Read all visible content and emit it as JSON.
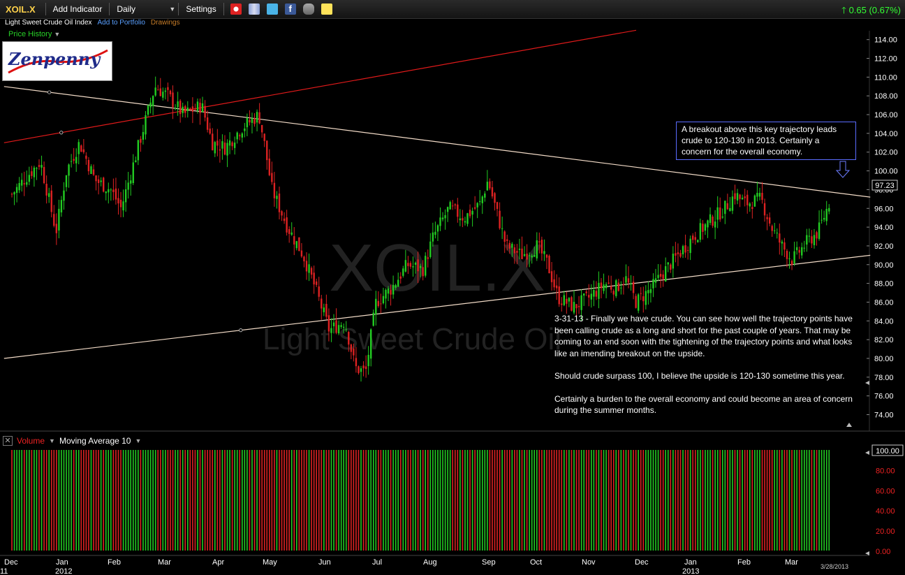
{
  "toolbar": {
    "symbol": "XOIL.X",
    "add_indicator": "Add Indicator",
    "period": "Daily",
    "settings": "Settings",
    "change": "0.65 (0.67%)"
  },
  "subheader": {
    "name": "Light Sweet Crude Oil Index",
    "add_portfolio": "Add to Portfolio",
    "drawings": "Drawings"
  },
  "price_history_label": "Price History",
  "logo_text": "Zenpenny",
  "watermark": {
    "symbol": "XOIL.X",
    "name": "Light Sweet Crude Oil"
  },
  "annotation_box": "A breakout above this key trajectory leads crude to 120-130 in 2013. Certainly a concern for the overall economy.",
  "annotation_text": [
    "3-31-13 - Finally we have crude. You can see how well the trajectory points have been calling crude as a long and short for the past couple of years. That may be coming to an end soon with the tightening of the trajectory points and what looks like an imending breakout on the upside.",
    "Should crude surpass 100, I believe the upside is 120-130 sometime this year.",
    "Certainly a burden to the overall economy and could become an area of concern during the summer months."
  ],
  "volume_panel": {
    "volume_label": "Volume",
    "ma_label": "Moving Average 10",
    "y_ticks": [
      "100.00",
      "80.00",
      "60.00",
      "40.00",
      "20.00",
      "0.00"
    ]
  },
  "colors": {
    "up": "#22cc22",
    "down": "#dd2222",
    "trend_red": "#e01a1a",
    "trend_light": "#f3dcc8",
    "accent_blue": "#5a6cff"
  },
  "chart_data": {
    "type": "candlestick",
    "x_labels": [
      "Dec",
      "Jan",
      "Feb",
      "Mar",
      "Apr",
      "May",
      "Jun",
      "Jul",
      "Aug",
      "Sep",
      "Oct",
      "Nov",
      "Dec",
      "Jan",
      "Feb",
      "Mar"
    ],
    "x_sub_labels": [
      {
        "at": "Dec",
        "text": "11"
      },
      {
        "at": "Jan",
        "text": "2012"
      },
      {
        "at": "Jan",
        "text": "2013"
      }
    ],
    "date_stamp": "3/28/2013",
    "y_ticks": [
      74,
      76,
      78,
      80,
      82,
      84,
      86,
      88,
      90,
      92,
      94,
      96,
      98,
      100,
      102,
      104,
      106,
      108,
      110,
      112,
      114
    ],
    "last_price": "97.23",
    "ylim": [
      73,
      115
    ],
    "price_path": [
      {
        "m": 0.0,
        "v": 97.5
      },
      {
        "m": 0.3,
        "v": 99.5
      },
      {
        "m": 0.55,
        "v": 101
      },
      {
        "m": 0.75,
        "v": 96
      },
      {
        "m": 0.85,
        "v": 93.5
      },
      {
        "m": 1.05,
        "v": 100
      },
      {
        "m": 1.3,
        "v": 103
      },
      {
        "m": 1.6,
        "v": 99
      },
      {
        "m": 1.9,
        "v": 98
      },
      {
        "m": 2.1,
        "v": 96
      },
      {
        "m": 2.4,
        "v": 102
      },
      {
        "m": 2.75,
        "v": 109
      },
      {
        "m": 3.0,
        "v": 108
      },
      {
        "m": 3.3,
        "v": 106
      },
      {
        "m": 3.65,
        "v": 107
      },
      {
        "m": 3.85,
        "v": 103
      },
      {
        "m": 4.1,
        "v": 102.5
      },
      {
        "m": 4.4,
        "v": 104.5
      },
      {
        "m": 4.75,
        "v": 106
      },
      {
        "m": 4.85,
        "v": 103
      },
      {
        "m": 5.0,
        "v": 98
      },
      {
        "m": 5.3,
        "v": 94
      },
      {
        "m": 5.6,
        "v": 91
      },
      {
        "m": 5.8,
        "v": 88
      },
      {
        "m": 6.1,
        "v": 83
      },
      {
        "m": 6.4,
        "v": 84
      },
      {
        "m": 6.6,
        "v": 79
      },
      {
        "m": 6.8,
        "v": 78.5
      },
      {
        "m": 7.0,
        "v": 86
      },
      {
        "m": 7.3,
        "v": 87.5
      },
      {
        "m": 7.6,
        "v": 90
      },
      {
        "m": 7.9,
        "v": 89.5
      },
      {
        "m": 8.1,
        "v": 93
      },
      {
        "m": 8.4,
        "v": 96
      },
      {
        "m": 8.7,
        "v": 95
      },
      {
        "m": 9.0,
        "v": 96.5
      },
      {
        "m": 9.15,
        "v": 99
      },
      {
        "m": 9.3,
        "v": 96
      },
      {
        "m": 9.5,
        "v": 92
      },
      {
        "m": 9.8,
        "v": 91
      },
      {
        "m": 10.1,
        "v": 92
      },
      {
        "m": 10.3,
        "v": 90
      },
      {
        "m": 10.5,
        "v": 86.5
      },
      {
        "m": 10.8,
        "v": 85.5
      },
      {
        "m": 11.1,
        "v": 86.5
      },
      {
        "m": 11.4,
        "v": 88
      },
      {
        "m": 11.6,
        "v": 87.5
      },
      {
        "m": 11.8,
        "v": 88.5
      },
      {
        "m": 12.0,
        "v": 86
      },
      {
        "m": 12.3,
        "v": 87.5
      },
      {
        "m": 12.5,
        "v": 89
      },
      {
        "m": 12.8,
        "v": 91
      },
      {
        "m": 13.1,
        "v": 93
      },
      {
        "m": 13.4,
        "v": 94.5
      },
      {
        "m": 13.7,
        "v": 96
      },
      {
        "m": 13.9,
        "v": 97.5
      },
      {
        "m": 14.1,
        "v": 96.5
      },
      {
        "m": 14.4,
        "v": 97
      },
      {
        "m": 14.6,
        "v": 94
      },
      {
        "m": 14.8,
        "v": 92
      },
      {
        "m": 15.0,
        "v": 90.5
      },
      {
        "m": 15.3,
        "v": 92.5
      },
      {
        "m": 15.5,
        "v": 93.5
      },
      {
        "m": 15.75,
        "v": 97.2
      }
    ],
    "trendlines": [
      {
        "name": "red-support",
        "color": "#e01a1a",
        "from": {
          "m": -0.15,
          "v": 103
        },
        "to": {
          "m": 12.0,
          "v": 115
        }
      },
      {
        "name": "upper-trajectory",
        "color": "#f3dcc8",
        "from": {
          "m": -0.15,
          "v": 109
        },
        "to": {
          "m": 16.5,
          "v": 97.2
        }
      },
      {
        "name": "lower-trajectory",
        "color": "#f3dcc8",
        "from": {
          "m": -0.15,
          "v": 80
        },
        "to": {
          "m": 16.5,
          "v": 91
        }
      }
    ]
  }
}
